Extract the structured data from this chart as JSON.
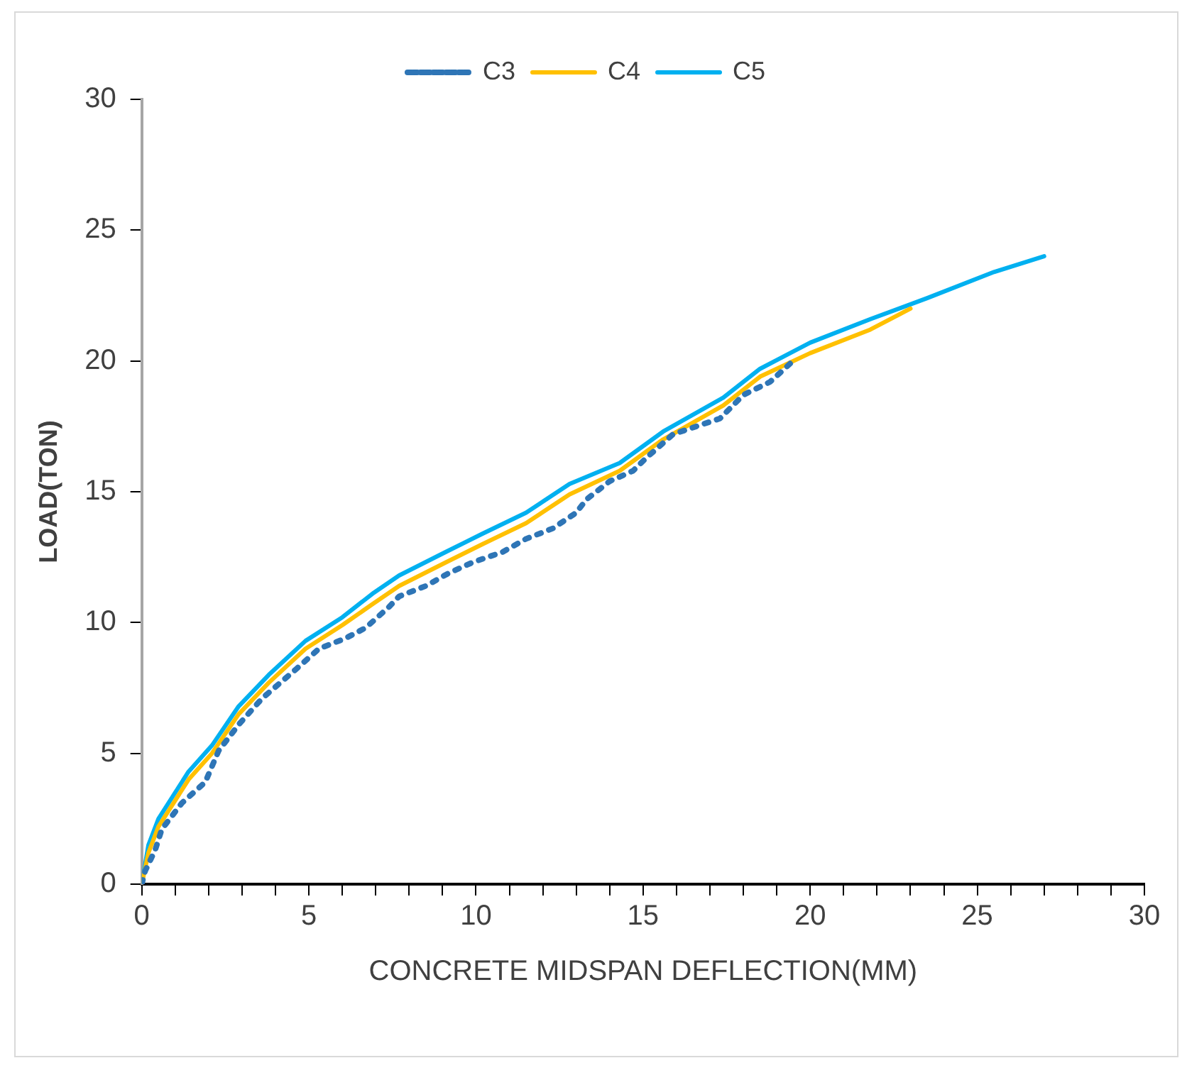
{
  "chart_data": {
    "type": "line",
    "xlabel": "CONCRETE MIDSPAN DEFLECTION(MM)",
    "ylabel": "LOAD(TON)",
    "legend": "top",
    "marker": "none",
    "grid": false,
    "xlim": [
      0,
      30
    ],
    "xticks": [
      0,
      {
        "value": 1,
        "label": null
      },
      {
        "value": 2,
        "label": null
      },
      {
        "value": 3,
        "label": null
      },
      {
        "value": 4,
        "label": null
      },
      5,
      {
        "value": 6,
        "label": null
      },
      {
        "value": 7,
        "label": null
      },
      {
        "value": 8,
        "label": null
      },
      {
        "value": 9,
        "label": null
      },
      10,
      {
        "value": 11,
        "label": null
      },
      {
        "value": 12,
        "label": null
      },
      {
        "value": 13,
        "label": null
      },
      {
        "value": 14,
        "label": null
      },
      15,
      {
        "value": 16,
        "label": null
      },
      {
        "value": 17,
        "label": null
      },
      {
        "value": 18,
        "label": null
      },
      {
        "value": 19,
        "label": null
      },
      20,
      {
        "value": 21,
        "label": null
      },
      {
        "value": 22,
        "label": null
      },
      {
        "value": 23,
        "label": null
      },
      {
        "value": 24,
        "label": null
      },
      25,
      {
        "value": 26,
        "label": null
      },
      {
        "value": 27,
        "label": null
      },
      {
        "value": 28,
        "label": null
      },
      {
        "value": 29,
        "label": null
      },
      30
    ],
    "ylim": [
      0,
      30
    ],
    "yticks": [
      0,
      5,
      10,
      15,
      20,
      25,
      30
    ],
    "series": [
      {
        "name": "C3",
        "color": "#2e75b6",
        "line_style": "dotted",
        "x": [
          0,
          0.1,
          0.4,
          0.6,
          1.2,
          1.9,
          2.3,
          2.9,
          3.6,
          4.6,
          5.3,
          6.1,
          6.7,
          7.4,
          7.7,
          8.5,
          9.2,
          9.9,
          10.8,
          11.5,
          12.3,
          13.0,
          13.3,
          14.0,
          14.7,
          15.1,
          15.9,
          16.6,
          17.3,
          18.0,
          18.8,
          19.4
        ],
        "values": [
          0,
          0.5,
          1.3,
          2.1,
          3.1,
          3.9,
          5.1,
          6.1,
          7.1,
          8.2,
          9.0,
          9.4,
          9.8,
          10.6,
          11.0,
          11.4,
          11.9,
          12.3,
          12.7,
          13.2,
          13.6,
          14.2,
          14.7,
          15.4,
          15.8,
          16.3,
          17.2,
          17.5,
          17.8,
          18.7,
          19.2,
          19.9
        ]
      },
      {
        "name": "C4",
        "color": "#ffc000",
        "line_style": "solid",
        "x": [
          0,
          0.2,
          0.5,
          1.4,
          2.1,
          2.9,
          3.8,
          4.9,
          6.0,
          6.9,
          7.7,
          9.1,
          10.2,
          11.5,
          12.8,
          14.3,
          15.6,
          17.4,
          18.5,
          20.0,
          21.8,
          23.0
        ],
        "values": [
          0,
          1.2,
          2.2,
          4.0,
          5.0,
          6.5,
          7.7,
          9.0,
          9.9,
          10.7,
          11.4,
          12.3,
          13.0,
          13.8,
          14.9,
          15.8,
          17.0,
          18.3,
          19.4,
          20.3,
          21.2,
          22.0
        ]
      },
      {
        "name": "C5",
        "color": "#00b0f0",
        "line_style": "solid",
        "x": [
          0,
          0.2,
          0.5,
          1.4,
          2.1,
          2.9,
          3.8,
          4.9,
          6.0,
          6.9,
          7.7,
          9.1,
          10.2,
          11.5,
          12.8,
          14.3,
          15.6,
          17.4,
          18.5,
          20.0,
          21.8,
          23.5,
          25.5,
          27.0
        ],
        "values": [
          0,
          1.5,
          2.5,
          4.3,
          5.3,
          6.8,
          8.0,
          9.3,
          10.2,
          11.1,
          11.8,
          12.7,
          13.4,
          14.2,
          15.3,
          16.1,
          17.3,
          18.6,
          19.7,
          20.7,
          21.6,
          22.4,
          23.4,
          24.0
        ]
      }
    ]
  }
}
